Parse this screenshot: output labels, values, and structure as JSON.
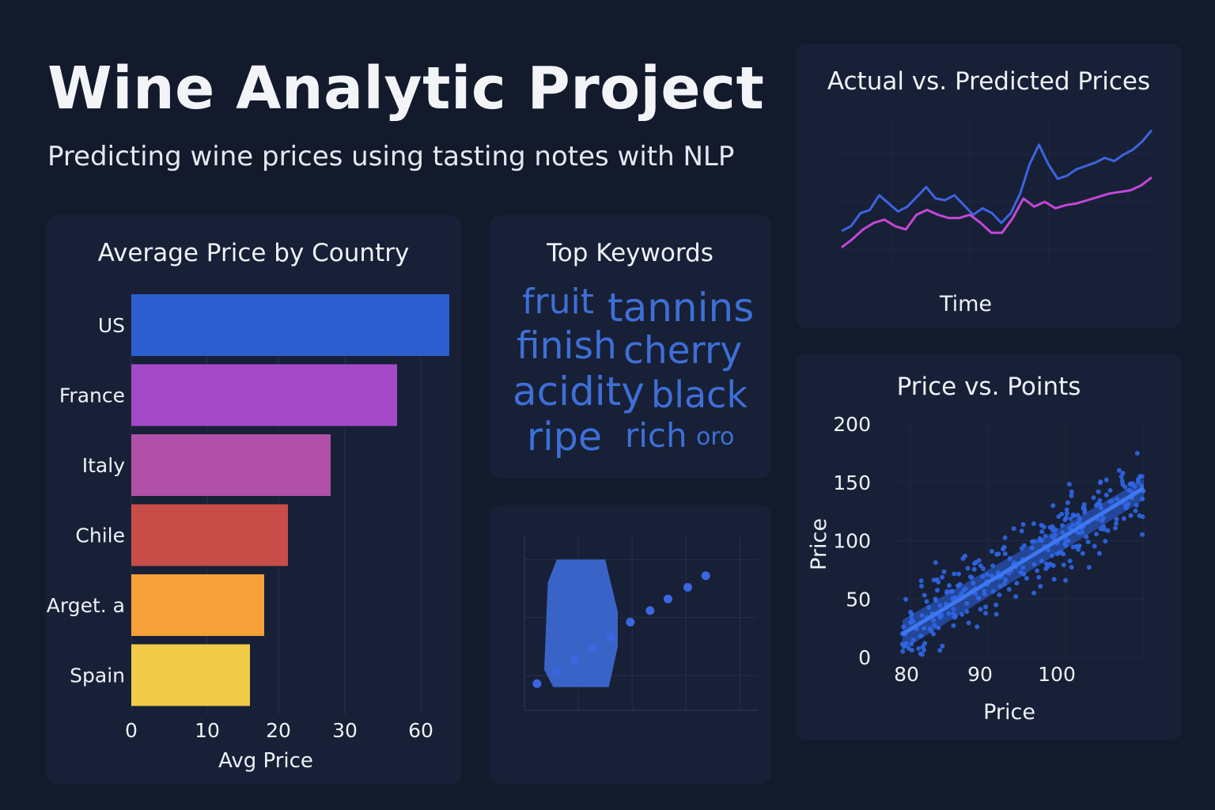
{
  "header": {
    "title": "Wine Analytic Project",
    "subtitle": "Predicting wine prices using tasting notes with NLP"
  },
  "colors": {
    "background": "#121a2b",
    "panel": "#172036",
    "actual_line": "#3e63e0",
    "predicted_line": "#c447d6",
    "keyword": "#3e6fd6",
    "scatter": "#2f66e6"
  },
  "chart_data": [
    {
      "type": "bar",
      "orientation": "horizontal",
      "title": "Average Price by Country",
      "xlabel": "Avg Price",
      "ylabel": "",
      "categories": [
        "US",
        "France",
        "Italy",
        "Chile",
        "Arget. a",
        "Spain"
      ],
      "values": [
        67,
        56,
        42,
        33,
        28,
        25
      ],
      "bar_colors": [
        "#2d5fd0",
        "#a44ac8",
        "#b050a8",
        "#c84c48",
        "#f5a038",
        "#efcb48"
      ],
      "x_ticks": [
        {
          "label": "0",
          "pos": 0
        },
        {
          "label": "10",
          "pos": 16
        },
        {
          "label": "20",
          "pos": 31
        },
        {
          "label": "30",
          "pos": 45
        },
        {
          "label": "60",
          "pos": 61
        }
      ],
      "xlim": [
        0,
        70
      ],
      "grid": true
    },
    {
      "type": "wordcloud",
      "title": "Top Keywords",
      "words": [
        {
          "text": "fruit",
          "weight": 44
        },
        {
          "text": "tannins",
          "weight": 50
        },
        {
          "text": "finish",
          "weight": 47
        },
        {
          "text": "cherry",
          "weight": 47
        },
        {
          "text": "acidity",
          "weight": 50
        },
        {
          "text": "black",
          "weight": 46
        },
        {
          "text": "ripe",
          "weight": 49
        },
        {
          "text": "rich",
          "weight": 42
        },
        {
          "text": "oro",
          "weight": 30
        }
      ]
    },
    {
      "type": "area",
      "title": "",
      "xlabel": "",
      "ylabel": "",
      "grid": true,
      "area_points": [
        [
          3.7,
          0
        ],
        [
          4.7,
          0
        ],
        [
          5.2,
          3.5
        ],
        [
          5.2,
          6.5
        ],
        [
          4.5,
          11
        ],
        [
          1.8,
          11
        ],
        [
          1.3,
          9
        ],
        [
          1.1,
          1.5
        ],
        [
          1.6,
          0
        ]
      ],
      "points": [
        [
          0.7,
          0.3
        ],
        [
          1.8,
          1.3
        ],
        [
          2.8,
          2.3
        ],
        [
          3.8,
          3.3
        ],
        [
          4.8,
          4.3
        ],
        [
          5.9,
          5.6
        ],
        [
          7.0,
          6.6
        ],
        [
          8.0,
          7.6
        ],
        [
          9.1,
          8.6
        ],
        [
          10.1,
          9.6
        ]
      ],
      "xlim": [
        0,
        13
      ],
      "ylim": [
        -2,
        13
      ]
    },
    {
      "type": "line",
      "title": "Actual vs. Predicted Prices",
      "xlabel": "Time",
      "ylabel": "",
      "grid": true,
      "series": [
        {
          "values": [
            10,
            13,
            21,
            23,
            32,
            27,
            22,
            25,
            31,
            37,
            30,
            29,
            32,
            26,
            20,
            24,
            21,
            15,
            21,
            33,
            51,
            63,
            51,
            42,
            44,
            48,
            50,
            52,
            55,
            53,
            57,
            60,
            65,
            72
          ]
        },
        {
          "values": [
            0,
            5,
            11,
            15,
            17,
            13,
            11,
            20,
            23,
            20,
            18,
            18,
            20,
            15,
            9,
            9,
            18,
            30,
            25,
            28,
            24,
            26,
            27,
            29,
            31,
            33,
            34,
            35,
            38,
            43
          ]
        }
      ]
    },
    {
      "type": "scatter",
      "title": "Price vs. Points",
      "xlabel": "Price",
      "ylabel": "Price",
      "x_ticks": [
        "80",
        "90",
        "100"
      ],
      "y_ticks": [
        "0",
        "50",
        "100",
        "150",
        "200"
      ],
      "xlim": [
        78,
        110
      ],
      "ylim": [
        0,
        200
      ],
      "grid": true,
      "trend": {
        "x0": 79,
        "y0": 20,
        "x1": 110,
        "y1": 145
      },
      "n_points": 320
    }
  ]
}
